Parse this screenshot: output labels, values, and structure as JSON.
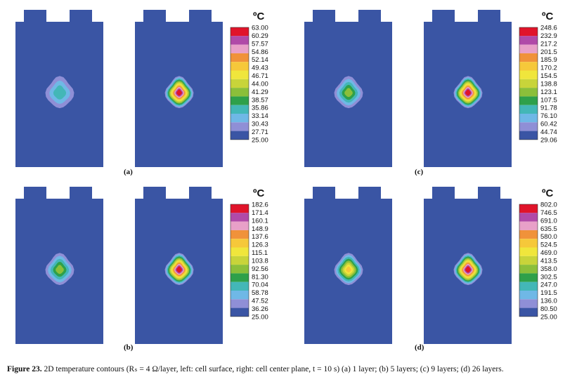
{
  "figure": {
    "caption_label": "Figure 23.",
    "caption_text": "2D temperature contours (Rₛ = 4 Ω/layer, left: cell surface, right: cell center plane, t = 10 s) (a) 1 layer; (b) 5 layers; (c) 9 layers; (d) 26 layers."
  },
  "colors": {
    "background_cell": "#3a55a4",
    "bands": [
      "#3a55a4",
      "#8f8fd6",
      "#6fb8e6",
      "#43b7b7",
      "#2ea04a",
      "#8bbf3a",
      "#c8d43a",
      "#f0e63c",
      "#f6c83a",
      "#f0923a",
      "#e8a0c8",
      "#b04aa8",
      "#e0142a"
    ]
  },
  "panels": [
    {
      "label": "(a)",
      "unit": "ºC",
      "legend_ticks": [
        "63.00",
        "60.29",
        "57.57",
        "54.86",
        "52.14",
        "49.43",
        "46.71",
        "44.00",
        "41.29",
        "38.57",
        "35.86",
        "33.14",
        "30.43",
        "27.71",
        "25.00"
      ],
      "surface_rings": 3,
      "center_rings": 13
    },
    {
      "label": "(c)",
      "unit": "ºC",
      "legend_ticks": [
        "248.6",
        "232.9",
        "217.2",
        "201.5",
        "185.9",
        "170.2",
        "154.5",
        "138.8",
        "123.1",
        "107.5",
        "91.78",
        "76.10",
        "60.42",
        "44.74",
        "29.06"
      ],
      "surface_rings": 5,
      "center_rings": 13
    },
    {
      "label": "(b)",
      "unit": "ºC",
      "legend_ticks": [
        "182.6",
        "171.4",
        "160.1",
        "148.9",
        "137.6",
        "126.3",
        "115.1",
        "103.8",
        "92.56",
        "81.30",
        "70.04",
        "58.78",
        "47.52",
        "36.26",
        "25.00"
      ],
      "surface_rings": 5,
      "center_rings": 13
    },
    {
      "label": "(d)",
      "unit": "ºC",
      "legend_ticks": [
        "802.0",
        "746.5",
        "691.0",
        "635.5",
        "580.0",
        "524.5",
        "469.0",
        "413.5",
        "358.0",
        "302.5",
        "247.0",
        "191.5",
        "136.0",
        "80.50",
        "25.00"
      ],
      "surface_rings": 8,
      "center_rings": 13
    }
  ]
}
